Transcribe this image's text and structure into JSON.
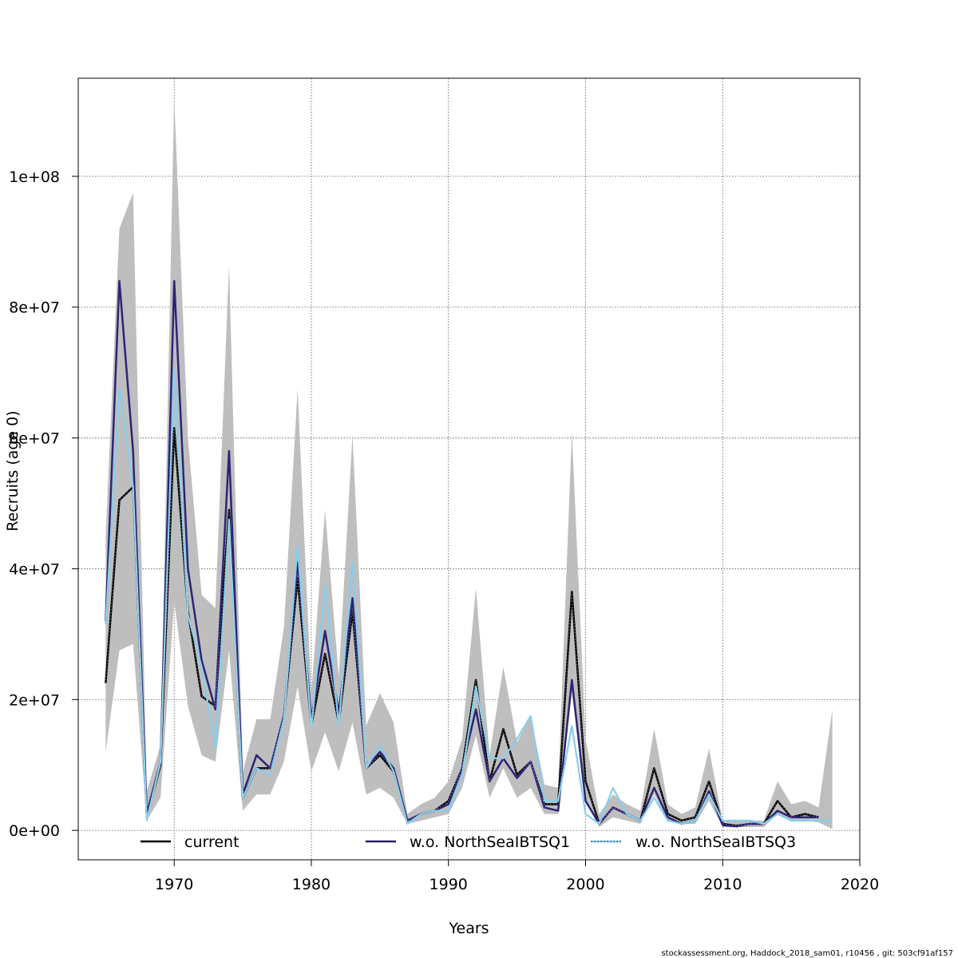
{
  "chart_data": {
    "type": "line",
    "xlabel": "Years",
    "ylabel": "Recruits (age 0)",
    "xlim": [
      1963,
      2020
    ],
    "ylim": [
      -4500000,
      115000000
    ],
    "x_ticks": [
      1970,
      1980,
      1990,
      2000,
      2010,
      2020
    ],
    "x_tick_labels": [
      "1970",
      "1980",
      "1990",
      "2000",
      "2010",
      "2020"
    ],
    "y_ticks": [
      0,
      20000000,
      40000000,
      60000000,
      80000000,
      100000000
    ],
    "y_tick_labels": [
      "0e+00",
      "2e+07",
      "4e+07",
      "6e+07",
      "8e+07",
      "1e+08"
    ],
    "grid": true,
    "legend_position": "bottom",
    "colors": {
      "band": "#bebebe",
      "current": "#000000",
      "q1": "#2d2477",
      "q3": "#87ceeb"
    },
    "x": [
      1965,
      1966,
      1967,
      1968,
      1969,
      1970,
      1971,
      1972,
      1973,
      1974,
      1975,
      1976,
      1977,
      1978,
      1979,
      1980,
      1981,
      1982,
      1983,
      1984,
      1985,
      1986,
      1987,
      1988,
      1989,
      1990,
      1991,
      1992,
      1993,
      1994,
      1995,
      1996,
      1997,
      1998,
      1999,
      2000,
      2001,
      2002,
      2003,
      2004,
      2005,
      2006,
      2007,
      2008,
      2009,
      2010,
      2011,
      2012,
      2013,
      2014,
      2015,
      2016,
      2017,
      2018
    ],
    "band_upper": [
      45000000,
      92000000,
      97500000,
      6000000,
      13000000,
      112000000,
      60000000,
      36000000,
      34000000,
      86500000,
      9000000,
      17000000,
      17000000,
      31000000,
      67500000,
      21000000,
      49000000,
      23500000,
      60500000,
      16000000,
      21000000,
      16500000,
      2500000,
      4000000,
      5000000,
      7500000,
      14000000,
      37000000,
      11500000,
      25000000,
      13500000,
      17500000,
      7000000,
      6500000,
      61000000,
      14000000,
      2500000,
      5500000,
      4000000,
      3000000,
      15500000,
      4000000,
      2500000,
      3500000,
      12500000,
      1500000,
      1500000,
      1500000,
      1500000,
      7500000,
      4000000,
      4500000,
      3500000,
      18500000
    ],
    "band_lower": [
      12000000,
      27500000,
      28500000,
      1500000,
      5000000,
      35000000,
      19000000,
      11500000,
      10500000,
      27500000,
      3000000,
      5500000,
      5500000,
      10500000,
      22000000,
      9000000,
      15000000,
      9000000,
      16500000,
      5500000,
      6500000,
      5000000,
      1000000,
      1500000,
      2000000,
      2500000,
      6500000,
      14500000,
      5000000,
      9500000,
      5000000,
      6500000,
      2500000,
      2500000,
      21000000,
      4500000,
      500000,
      2000000,
      1500000,
      1000000,
      5500000,
      1500000,
      1000000,
      1000000,
      4500000,
      500000,
      500000,
      500000,
      500000,
      2500000,
      1500000,
      1500000,
      1200000,
      200000
    ],
    "series": [
      {
        "name": "current",
        "values": [
          22500000,
          50500000,
          52500000,
          2000000,
          10000000,
          61500000,
          33500000,
          20500000,
          19000000,
          49000000,
          5000000,
          9500000,
          9500000,
          17500000,
          38500000,
          16000000,
          27000000,
          16500000,
          33500000,
          9500000,
          11500000,
          9000000,
          1500000,
          2500000,
          3000000,
          4500000,
          9500000,
          23000000,
          7500000,
          15500000,
          8500000,
          10500000,
          4000000,
          4000000,
          36500000,
          7500000,
          1000000,
          3500000,
          2500000,
          1500000,
          9500000,
          2500000,
          1500000,
          2000000,
          7500000,
          1000000,
          700000,
          1000000,
          1000000,
          4500000,
          2000000,
          2500000,
          2000000,
          null
        ]
      },
      {
        "name": "w.o. NorthSeaIBTSQ1",
        "values": [
          32000000,
          84000000,
          58000000,
          2500000,
          10500000,
          84000000,
          40000000,
          26000000,
          18500000,
          58000000,
          5500000,
          11500000,
          9500000,
          17500000,
          41000000,
          17000000,
          30500000,
          18000000,
          35500000,
          9500000,
          12000000,
          9500000,
          1500000,
          2500000,
          3000000,
          4000000,
          9500000,
          18500000,
          7500000,
          11000000,
          8000000,
          10500000,
          3500000,
          3000000,
          23000000,
          4500000,
          1000000,
          3500000,
          2500000,
          1500000,
          6500000,
          2000000,
          1000000,
          1500000,
          6000000,
          800000,
          600000,
          1000000,
          1000000,
          3000000,
          2000000,
          2000000,
          2000000,
          null
        ]
      },
      {
        "name": "w.o. NorthSeaIBTSQ3",
        "values": [
          31500000,
          67500000,
          52500000,
          1500000,
          10500000,
          70500000,
          33000000,
          25000000,
          12500000,
          47500000,
          5000000,
          9500000,
          8500000,
          17000000,
          43500000,
          15500000,
          37500000,
          16000000,
          41000000,
          9500000,
          13000000,
          9000000,
          1000000,
          2500000,
          3000000,
          3000000,
          8500000,
          22000000,
          11000000,
          11000000,
          14000000,
          17500000,
          4500000,
          4500000,
          16000000,
          2500000,
          1000000,
          6500000,
          2500000,
          1500000,
          5000000,
          1500000,
          1000000,
          1500000,
          5500000,
          1500000,
          1500000,
          1500000,
          1000000,
          2500000,
          1500000,
          1500000,
          1500000,
          1500000
        ]
      }
    ]
  },
  "footer": "stockassessment.org, Haddock_2018_sam01, r10456 , git: 503cf91af157"
}
